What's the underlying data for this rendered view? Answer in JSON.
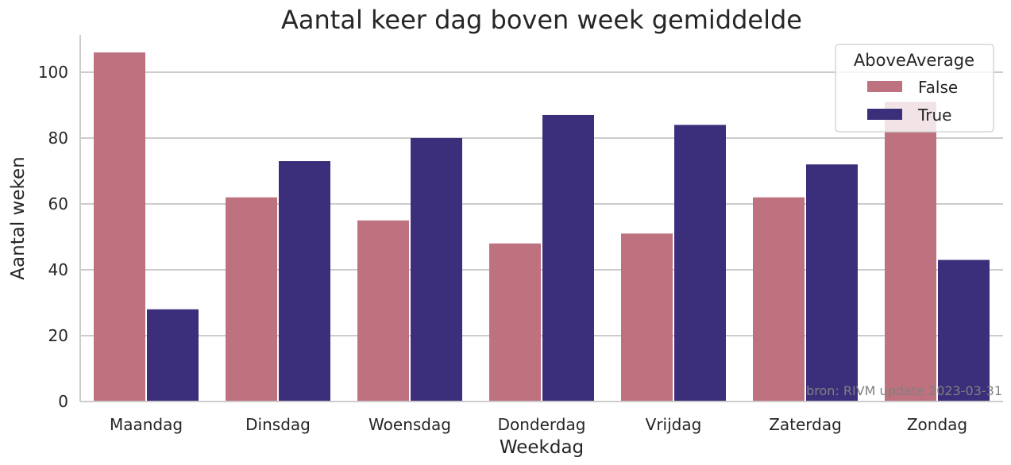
{
  "chart_data": {
    "type": "bar",
    "title": "Aantal keer dag boven week gemiddelde",
    "xlabel": "Weekdag",
    "ylabel": "Aantal weken",
    "categories": [
      "Maandag",
      "Dinsdag",
      "Woensdag",
      "Donderdag",
      "Vrijdag",
      "Zaterdag",
      "Zondag"
    ],
    "series": [
      {
        "name": "False",
        "color": "#be7280",
        "values": [
          106,
          62,
          55,
          48,
          51,
          62,
          91
        ]
      },
      {
        "name": "True",
        "color": "#3b2f7b",
        "values": [
          28,
          73,
          80,
          87,
          84,
          72,
          43
        ]
      }
    ],
    "ylim": [
      0,
      111
    ],
    "yticks": [
      0,
      20,
      40,
      60,
      80,
      100
    ],
    "grid": "horizontal",
    "legend": {
      "title": "AboveAverage",
      "placement": "top-right"
    },
    "annotation": "bron: RIVM update 2023-03-31"
  }
}
